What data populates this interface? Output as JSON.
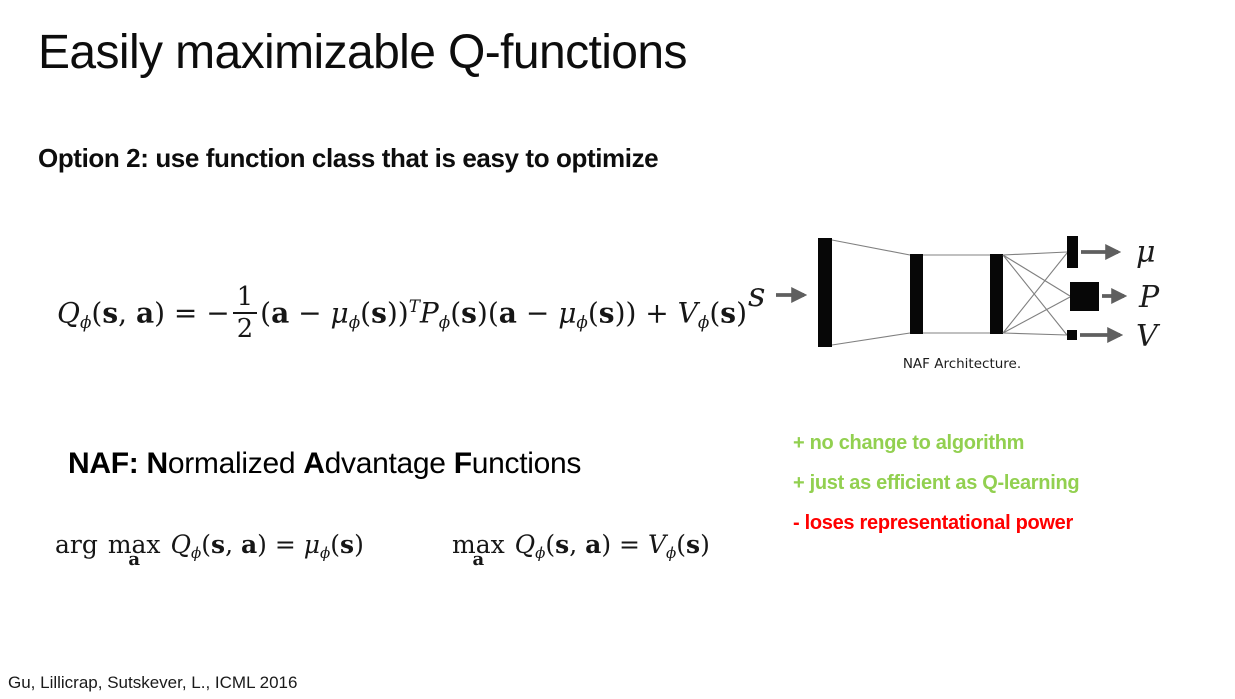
{
  "slide": {
    "title": "Easily maximizable Q-functions",
    "subtitle": "Option 2: use function class that is easy to optimize",
    "citation": "Gu, Lillicrap, Sutskever, L., ICML 2016"
  },
  "naf": {
    "parts": [
      {
        "t": "NAF: ",
        "bold": true
      },
      {
        "t": "N",
        "bold": true
      },
      {
        "t": "ormalized ",
        "bold": false
      },
      {
        "t": "A",
        "bold": true
      },
      {
        "t": "dvantage ",
        "bold": false
      },
      {
        "t": "F",
        "bold": true
      },
      {
        "t": "unctions",
        "bold": false
      }
    ]
  },
  "formulas": {
    "main": [
      {
        "c": "it",
        "t": "Q"
      },
      {
        "c": "sub",
        "t": "ϕ"
      },
      {
        "c": "rm",
        "t": "("
      },
      {
        "c": "bf",
        "t": "s"
      },
      {
        "c": "rm",
        "t": ", "
      },
      {
        "c": "bf",
        "t": "a"
      },
      {
        "c": "rm",
        "t": ") = −"
      },
      {
        "type": "frac",
        "num": "1",
        "den": "2"
      },
      {
        "c": "rm",
        "t": "("
      },
      {
        "c": "bf",
        "t": "a"
      },
      {
        "c": "rm",
        "t": " − "
      },
      {
        "c": "it",
        "t": "μ"
      },
      {
        "c": "sub",
        "t": "ϕ"
      },
      {
        "c": "rm",
        "t": "("
      },
      {
        "c": "bf",
        "t": "s"
      },
      {
        "c": "rm",
        "t": "))"
      },
      {
        "c": "sup",
        "t": "T"
      },
      {
        "c": "it",
        "t": "P"
      },
      {
        "c": "sub",
        "t": "ϕ"
      },
      {
        "c": "rm",
        "t": "("
      },
      {
        "c": "bf",
        "t": "s"
      },
      {
        "c": "rm",
        "t": ")("
      },
      {
        "c": "bf",
        "t": "a"
      },
      {
        "c": "rm",
        "t": " − "
      },
      {
        "c": "it",
        "t": "μ"
      },
      {
        "c": "sub",
        "t": "ϕ"
      },
      {
        "c": "rm",
        "t": "("
      },
      {
        "c": "bf",
        "t": "s"
      },
      {
        "c": "rm",
        "t": ")) + "
      },
      {
        "c": "it",
        "t": "V"
      },
      {
        "c": "sub",
        "t": "ϕ"
      },
      {
        "c": "rm",
        "t": "("
      },
      {
        "c": "bf",
        "t": "s"
      },
      {
        "c": "rm",
        "t": ")"
      }
    ],
    "argmax": [
      {
        "c": "rm",
        "t": "arg "
      },
      {
        "type": "stack",
        "top": "max",
        "under": "a"
      },
      {
        "c": "rm",
        "t": " "
      },
      {
        "c": "it",
        "t": "Q"
      },
      {
        "c": "sub",
        "t": "ϕ"
      },
      {
        "c": "rm",
        "t": "("
      },
      {
        "c": "bf",
        "t": "s"
      },
      {
        "c": "rm",
        "t": ", "
      },
      {
        "c": "bf",
        "t": "a"
      },
      {
        "c": "rm",
        "t": ") = "
      },
      {
        "c": "it",
        "t": "μ"
      },
      {
        "c": "sub",
        "t": "ϕ"
      },
      {
        "c": "rm",
        "t": "("
      },
      {
        "c": "bf",
        "t": "s"
      },
      {
        "c": "rm",
        "t": ")"
      }
    ],
    "max": [
      {
        "type": "stack",
        "top": "max",
        "under": "a"
      },
      {
        "c": "rm",
        "t": " "
      },
      {
        "c": "it",
        "t": "Q"
      },
      {
        "c": "sub",
        "t": "ϕ"
      },
      {
        "c": "rm",
        "t": "("
      },
      {
        "c": "bf",
        "t": "s"
      },
      {
        "c": "rm",
        "t": ", "
      },
      {
        "c": "bf",
        "t": "a"
      },
      {
        "c": "rm",
        "t": ") = "
      },
      {
        "c": "it",
        "t": "V"
      },
      {
        "c": "sub",
        "t": "ϕ"
      },
      {
        "c": "rm",
        "t": "("
      },
      {
        "c": "bf",
        "t": "s"
      },
      {
        "c": "rm",
        "t": ")"
      }
    ]
  },
  "diagram": {
    "input_label": "s",
    "output_labels": [
      "μ",
      "P",
      "V"
    ],
    "caption": "NAF Architecture."
  },
  "pros_cons": {
    "items": [
      {
        "text": "+ no change to algorithm",
        "tone": "positive"
      },
      {
        "text": "+ just as efficient as Q-learning",
        "tone": "positive"
      },
      {
        "text": "- loses representational power",
        "tone": "negative"
      }
    ]
  },
  "colors": {
    "positive_green": "#92d050",
    "negative_red": "#ff0000",
    "text_black": "#0d0d0d",
    "diagram_bar_black": "#070707",
    "diagram_line_gray": "#808080",
    "diagram_arrow_gray": "#5f5f5f"
  }
}
